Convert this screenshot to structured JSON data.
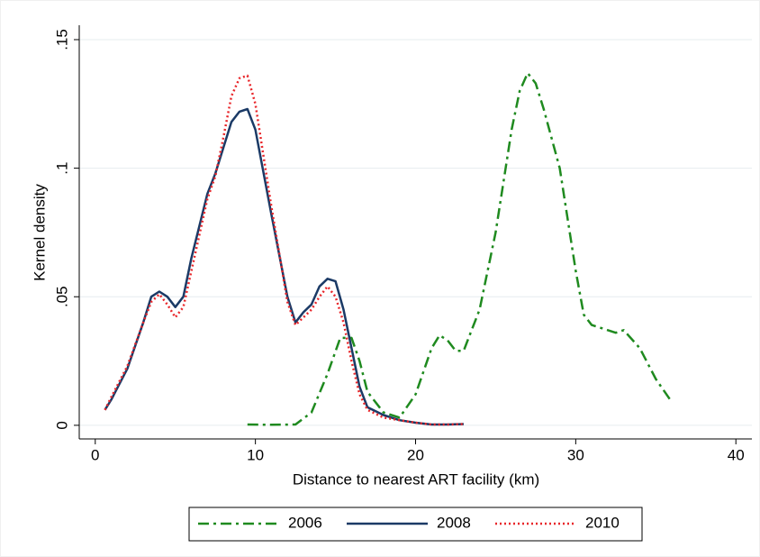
{
  "chart_data": {
    "type": "line",
    "x_label": "Distance to nearest ART facility (km)",
    "y_label": "Kernel density",
    "xlim": [
      -1,
      41
    ],
    "ylim": [
      -0.0053,
      0.1556
    ],
    "xticks": [
      0,
      10,
      20,
      30,
      40
    ],
    "yticks": [
      0,
      {
        "value": 0.05,
        "label": ".05"
      },
      {
        "value": 0.1,
        "label": ".1"
      },
      {
        "value": 0.15,
        "label": ".15"
      }
    ],
    "grid": true,
    "legend": "bottom",
    "series": [
      {
        "name": "2006",
        "color": "#1f8a1f",
        "dash": "dashdot",
        "x": [
          9.5,
          11,
          12.5,
          13.5,
          14.5,
          15.3,
          16,
          16.5,
          17,
          18,
          19,
          20,
          21,
          21.5,
          22,
          22.5,
          23,
          24,
          25,
          26,
          26.5,
          27,
          27.5,
          28,
          29,
          30,
          30.5,
          31,
          32,
          32.5,
          33,
          34,
          35,
          36
        ],
        "values": [
          0.0003,
          0.0002,
          0.0003,
          0.005,
          0.02,
          0.034,
          0.034,
          0.025,
          0.013,
          0.005,
          0.003,
          0.012,
          0.03,
          0.035,
          0.033,
          0.029,
          0.029,
          0.045,
          0.075,
          0.115,
          0.13,
          0.137,
          0.133,
          0.123,
          0.1,
          0.06,
          0.043,
          0.039,
          0.037,
          0.036,
          0.037,
          0.03,
          0.018,
          0.009
        ]
      },
      {
        "name": "2008",
        "color": "#1b3a66",
        "dash": "solid",
        "x": [
          0.6,
          1,
          2,
          3,
          3.5,
          4,
          4.5,
          5,
          5.5,
          6,
          7,
          7.5,
          8,
          8.5,
          9,
          9.5,
          10,
          11,
          12,
          12.5,
          13,
          13.5,
          14,
          14.5,
          15,
          15.5,
          16,
          16.5,
          17,
          18,
          19,
          20,
          21,
          22,
          23
        ],
        "values": [
          0.006,
          0.01,
          0.022,
          0.04,
          0.05,
          0.052,
          0.05,
          0.046,
          0.05,
          0.065,
          0.09,
          0.098,
          0.108,
          0.118,
          0.122,
          0.123,
          0.115,
          0.082,
          0.05,
          0.04,
          0.044,
          0.047,
          0.054,
          0.057,
          0.056,
          0.045,
          0.03,
          0.015,
          0.007,
          0.004,
          0.002,
          0.001,
          0.0003,
          0.0003,
          0.0005
        ]
      },
      {
        "name": "2010",
        "color": "#e8262a",
        "dash": "dot",
        "x": [
          0.6,
          1,
          2,
          3,
          3.5,
          4,
          4.5,
          5,
          5.5,
          6,
          7,
          7.5,
          8,
          8.5,
          9,
          9.5,
          10,
          11,
          12,
          12.5,
          13,
          13.5,
          14,
          14.5,
          15,
          15.5,
          16,
          16.5,
          17,
          18,
          19,
          20,
          21,
          22,
          23
        ],
        "values": [
          0.006,
          0.011,
          0.023,
          0.04,
          0.048,
          0.051,
          0.047,
          0.042,
          0.046,
          0.06,
          0.088,
          0.097,
          0.112,
          0.128,
          0.135,
          0.136,
          0.125,
          0.085,
          0.048,
          0.039,
          0.042,
          0.045,
          0.05,
          0.054,
          0.05,
          0.04,
          0.025,
          0.012,
          0.006,
          0.003,
          0.002,
          0.001,
          0.0003,
          0.0003,
          0.0005
        ]
      }
    ]
  }
}
